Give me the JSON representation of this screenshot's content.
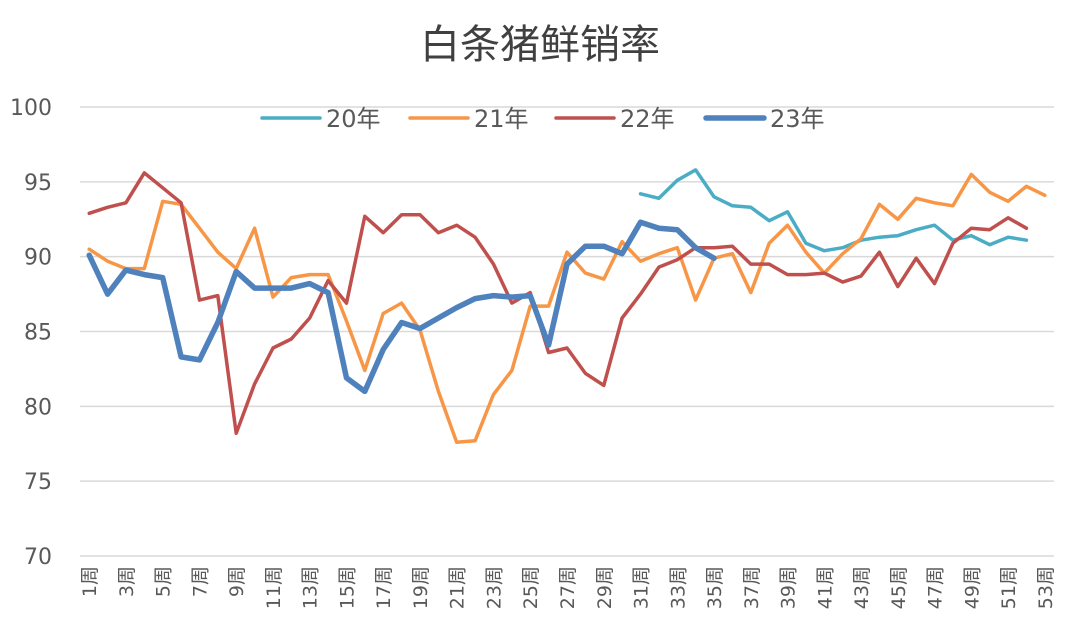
{
  "chart_data": {
    "type": "line",
    "title": "白条猪鲜销率",
    "xlabel": "",
    "ylabel": "",
    "ylim": [
      70,
      100
    ],
    "yticks": [
      70,
      75,
      80,
      85,
      90,
      95,
      100
    ],
    "grid": true,
    "legend_position": "top",
    "x": [
      "1周",
      "2周",
      "3周",
      "4周",
      "5周",
      "6周",
      "7周",
      "8周",
      "9周",
      "10周",
      "11周",
      "12周",
      "13周",
      "14周",
      "15周",
      "16周",
      "17周",
      "18周",
      "19周",
      "20周",
      "21周",
      "22周",
      "23周",
      "24周",
      "25周",
      "26周",
      "27周",
      "28周",
      "29周",
      "30周",
      "31周",
      "32周",
      "33周",
      "34周",
      "35周",
      "36周",
      "37周",
      "38周",
      "39周",
      "40周",
      "41周",
      "42周",
      "43周",
      "44周",
      "45周",
      "46周",
      "47周",
      "48周",
      "49周",
      "50周",
      "51周",
      "52周",
      "53周"
    ],
    "xtick_labels": [
      "1周",
      "3周",
      "5周",
      "7周",
      "9周",
      "11周",
      "13周",
      "15周",
      "17周",
      "19周",
      "21周",
      "23周",
      "25周",
      "27周",
      "29周",
      "31周",
      "33周",
      "35周",
      "37周",
      "39周",
      "41周",
      "43周",
      "45周",
      "47周",
      "49周",
      "51周",
      "53周"
    ],
    "series": [
      {
        "name": "20年",
        "color": "#4bacc6",
        "width": 3.5,
        "values": [
          null,
          null,
          null,
          null,
          null,
          null,
          null,
          null,
          null,
          null,
          null,
          null,
          null,
          null,
          null,
          null,
          null,
          null,
          null,
          null,
          null,
          null,
          null,
          null,
          null,
          null,
          null,
          null,
          null,
          null,
          94.2,
          93.9,
          95.1,
          95.8,
          94.0,
          93.4,
          93.3,
          92.4,
          93.0,
          90.9,
          90.4,
          90.6,
          91.1,
          91.3,
          91.4,
          91.8,
          92.1,
          91.1,
          91.4,
          90.8,
          91.3,
          91.1,
          null
        ]
      },
      {
        "name": "21年",
        "color": "#f79646",
        "width": 3.5,
        "values": [
          90.5,
          89.7,
          89.2,
          89.2,
          93.7,
          93.5,
          91.9,
          90.3,
          89.2,
          91.9,
          87.3,
          88.6,
          88.8,
          88.8,
          85.7,
          82.4,
          86.2,
          86.9,
          85.1,
          81.0,
          77.6,
          77.7,
          80.8,
          82.4,
          86.7,
          86.7,
          90.3,
          88.9,
          88.5,
          91.0,
          89.7,
          90.2,
          90.6,
          87.1,
          89.9,
          90.2,
          87.6,
          90.9,
          92.1,
          90.3,
          88.9,
          90.2,
          91.2,
          93.5,
          92.5,
          93.9,
          93.6,
          93.4,
          95.5,
          94.3,
          93.7,
          94.7,
          94.1
        ]
      },
      {
        "name": "22年",
        "color": "#c0504d",
        "width": 3.5,
        "values": [
          92.9,
          93.3,
          93.6,
          95.6,
          94.6,
          93.6,
          87.1,
          87.4,
          78.2,
          81.5,
          83.9,
          84.5,
          85.9,
          88.4,
          86.9,
          92.7,
          91.6,
          92.8,
          92.8,
          91.6,
          92.1,
          91.3,
          89.5,
          86.9,
          87.6,
          83.6,
          83.9,
          82.2,
          81.4,
          85.9,
          87.5,
          89.3,
          89.8,
          90.6,
          90.6,
          90.7,
          89.5,
          89.5,
          88.8,
          88.8,
          88.9,
          88.3,
          88.7,
          90.3,
          88.0,
          89.9,
          88.2,
          90.9,
          91.9,
          91.8,
          92.6,
          91.9,
          null
        ]
      },
      {
        "name": "23年",
        "color": "#4f81bd",
        "width": 5.5,
        "values": [
          90.1,
          87.5,
          89.1,
          88.8,
          88.6,
          83.3,
          83.1,
          85.6,
          89.0,
          87.9,
          87.9,
          87.9,
          88.2,
          87.6,
          81.9,
          81.0,
          83.8,
          85.6,
          85.2,
          85.9,
          86.6,
          87.2,
          87.4,
          87.3,
          87.4,
          84.1,
          89.5,
          90.7,
          90.7,
          90.2,
          92.3,
          91.9,
          91.8,
          90.6,
          89.9,
          null,
          null,
          null,
          null,
          null,
          null,
          null,
          null,
          null,
          null,
          null,
          null,
          null,
          null,
          null,
          null,
          null,
          null
        ]
      }
    ]
  }
}
